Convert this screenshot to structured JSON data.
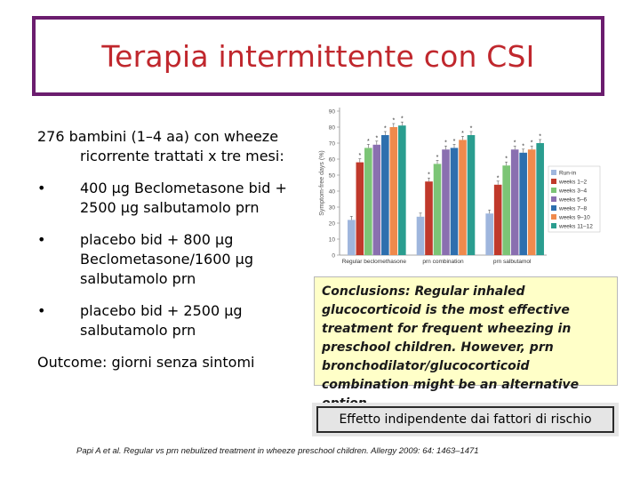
{
  "title": "Terapia intermittente con CSI",
  "left": {
    "intro_line1": "276 bambini (1–4 aa) con wheeze",
    "intro_line2": "ricorrente trattati x tre mesi:",
    "bullets": [
      "400 µg Beclometasone bid + 2500 µg salbutamolo prn",
      "placebo bid + 800 µg Beclometasone/1600 µg salbutamolo prn",
      "placebo bid + 2500 µg salbutamolo prn"
    ],
    "bullet_symbol": "•",
    "outcome": "Outcome: giorni senza sintomi"
  },
  "conclusion": {
    "text": "Conclusions: Regular inhaled glucocorticoid is the most effective treatment for frequent wheezing in preschool children. However, prn bronchodilator/glucocorticoid combination might be an alternative option."
  },
  "effect_box": "Effetto indipendente dai fattori di rischio",
  "citation": "Papi A et al. Regular vs prn nebulized treatment in wheeze preschool children. Allergy 2009: 64: 1463–1471",
  "chart_data": {
    "type": "bar",
    "title": "",
    "ylabel": "Symptom-free days (%)",
    "xlabel": "",
    "ylim": [
      0,
      90
    ],
    "yticks": [
      0,
      10,
      20,
      30,
      40,
      50,
      60,
      70,
      80,
      90
    ],
    "categories": [
      "Regular beclomethasone",
      "prn combination",
      "prn salbutamol"
    ],
    "series": [
      {
        "name": "Run-in",
        "color": "#9fb6dd",
        "values": [
          22,
          24,
          26
        ]
      },
      {
        "name": "weeks 1–2",
        "color": "#c0392b",
        "values": [
          58,
          46,
          44
        ]
      },
      {
        "name": "weeks 3–4",
        "color": "#7cc576",
        "values": [
          67,
          57,
          56
        ]
      },
      {
        "name": "weeks 5–6",
        "color": "#8a6fb0",
        "values": [
          69,
          66,
          66
        ]
      },
      {
        "name": "weeks 7–8",
        "color": "#2e6fae",
        "values": [
          75,
          67,
          64
        ]
      },
      {
        "name": "weeks 9–10",
        "color": "#ef8a4c",
        "values": [
          80,
          72,
          66
        ]
      },
      {
        "name": "weeks 11–12",
        "color": "#2a9d8f",
        "values": [
          81,
          75,
          70
        ]
      }
    ],
    "markers": [
      [
        false,
        true,
        true,
        true,
        true,
        true,
        true
      ],
      [
        false,
        true,
        true,
        true,
        true,
        true,
        true
      ],
      [
        false,
        true,
        true,
        true,
        true,
        true,
        true
      ]
    ],
    "marker_symbol": "*",
    "legend_position": "right",
    "grid": false
  }
}
